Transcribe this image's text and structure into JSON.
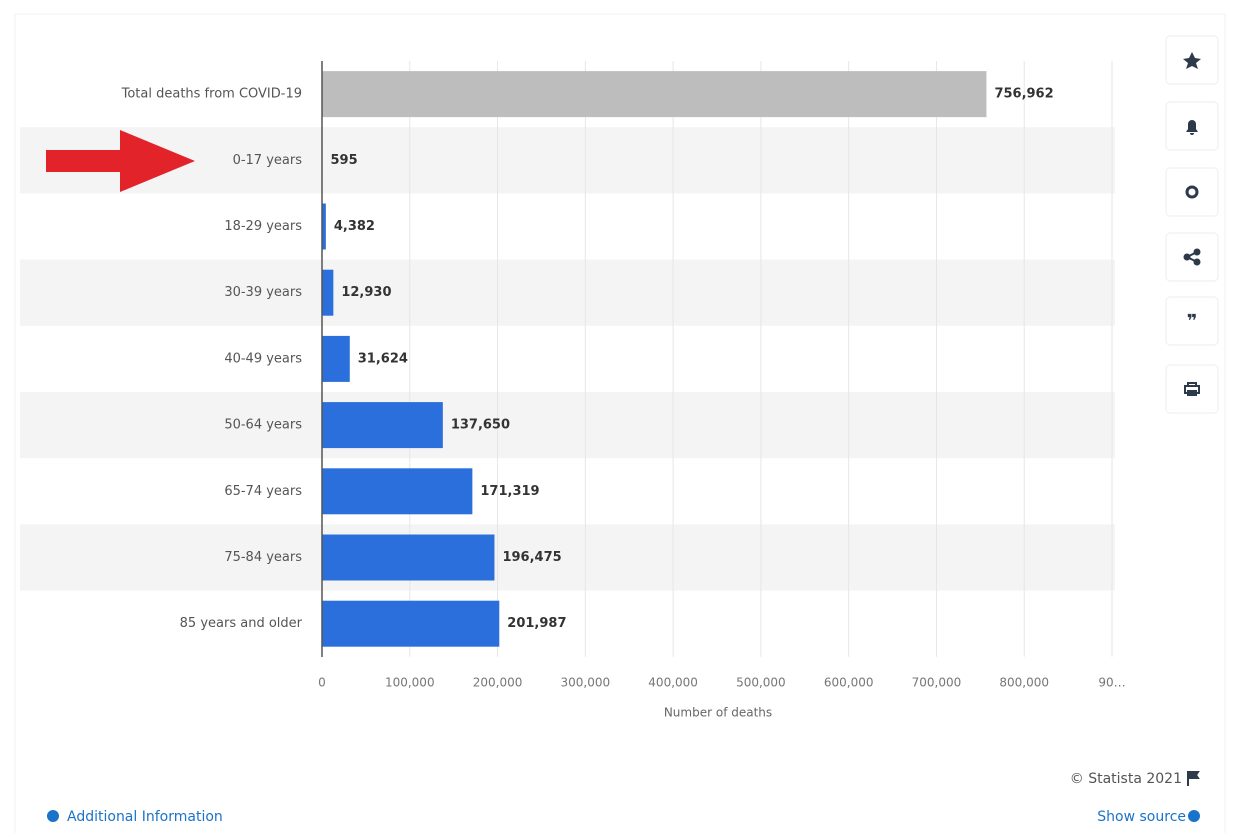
{
  "chart_data": {
    "type": "bar",
    "orientation": "horizontal",
    "categories": [
      "Total deaths from COVID-19",
      "0-17 years",
      "18-29 years",
      "30-39 years",
      "40-49 years",
      "50-64 years",
      "65-74 years",
      "75-84 years",
      "85 years and older"
    ],
    "values": [
      756962,
      595,
      4382,
      12930,
      31624,
      137650,
      171319,
      196475,
      201987
    ],
    "value_labels": [
      "756,962",
      "595",
      "4,382",
      "12,930",
      "31,624",
      "137,650",
      "171,319",
      "196,475",
      "201,987"
    ],
    "colors": [
      "#bdbdbd",
      "#2a6fdb",
      "#2a6fdb",
      "#2a6fdb",
      "#2a6fdb",
      "#2a6fdb",
      "#2a6fdb",
      "#2a6fdb",
      "#2a6fdb"
    ],
    "xlabel": "Number of deaths",
    "xlim": [
      0,
      900000
    ],
    "xticks": [
      0,
      {
        "value": 100000,
        "label": "100,000"
      },
      {
        "value": 200000,
        "label": "200,000"
      },
      {
        "value": 300000,
        "label": "300,000"
      },
      {
        "value": 400000,
        "label": "400,000"
      },
      {
        "value": 500000,
        "label": "500,000"
      },
      {
        "value": 600000,
        "label": "600,000"
      },
      {
        "value": 700000,
        "label": "700,000"
      },
      {
        "value": 800000,
        "label": "800,000"
      },
      {
        "value": 900000,
        "label": "90…"
      }
    ],
    "grid": true
  },
  "footer": {
    "copyright": "© Statista 2021",
    "additional_info": "Additional Information",
    "show_source": "Show source"
  }
}
